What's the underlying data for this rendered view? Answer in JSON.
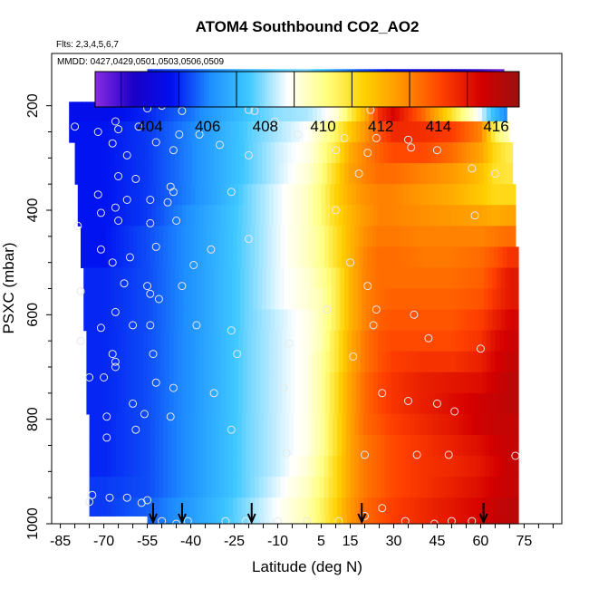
{
  "chart_data": {
    "type": "heatmap",
    "title": "ATOM4 Southbound CO2_AO2",
    "notes": {
      "flights": "Flts: 2,3,4,5,6,7",
      "dates": "MMDD: 0427,0429,0501,0503,0506,0509"
    },
    "xlabel": "Latitude (deg N)",
    "ylabel": "PSXC (mbar)",
    "xlim": [
      -88,
      88
    ],
    "ylim": [
      1000,
      100
    ],
    "x_ticks": [
      "-85",
      "-70",
      "-55",
      "-40",
      "-25",
      "-10",
      "5",
      "15",
      "30",
      "45",
      "60",
      "75"
    ],
    "x_tick_values": [
      -85,
      -70,
      -55,
      -40,
      -25,
      -10,
      5,
      15,
      30,
      45,
      60,
      75
    ],
    "y_ticks": [
      "200",
      "400",
      "600",
      "800",
      "1000"
    ],
    "y_tick_values": [
      200,
      400,
      600,
      800,
      1000
    ],
    "colorbar": {
      "ticks": [
        "404",
        "406",
        "408",
        "410",
        "412",
        "414",
        "416"
      ],
      "tick_values": [
        404,
        406,
        408,
        410,
        412,
        414,
        416
      ],
      "range": [
        402.1,
        416.8
      ],
      "colors": [
        "#8a2be2",
        "#1a00c8",
        "#0010f0",
        "#1e90ff",
        "#40c8ff",
        "#ffffff",
        "#ffff80",
        "#ffd000",
        "#ff9000",
        "#ff4000",
        "#d40000",
        "#9a1010"
      ]
    },
    "legend_position": "top (horizontal colorbar)",
    "grid": false,
    "pressure_levels": [
      175,
      210,
      250,
      290,
      330,
      370,
      410,
      450,
      490,
      530,
      570,
      610,
      650,
      690,
      730,
      770,
      810,
      850,
      890,
      930,
      970,
      1000
    ],
    "row_lat_start": [
      -55,
      -82,
      -82,
      -80,
      -80,
      -79,
      -79,
      -78,
      -78,
      -77,
      -77,
      -77,
      -76,
      -76,
      -76,
      -76,
      -75,
      -75,
      -75,
      -75,
      -75,
      -55
    ],
    "row_lat_end": [
      68,
      69,
      70,
      71,
      71,
      72,
      72,
      72,
      73,
      73,
      73,
      73,
      73,
      73,
      73,
      73,
      73,
      73,
      73,
      73,
      73,
      73
    ],
    "field_lat": [
      -85,
      -70,
      -55,
      -40,
      -30,
      -20,
      -10,
      0,
      5,
      10,
      15,
      20,
      25,
      30,
      40,
      50,
      60,
      65,
      70,
      75
    ],
    "field": [
      [
        404.6,
        404.6,
        405.0,
        405.6,
        406.2,
        407.0,
        407.6,
        407.8,
        407.2,
        406.4,
        405.8,
        405.4,
        405.0,
        404.6,
        404.0,
        403.6,
        403.0,
        402.5,
        402.2,
        402.2
      ],
      [
        404.6,
        404.6,
        405.0,
        405.8,
        406.6,
        407.4,
        408.0,
        408.2,
        408.6,
        409.2,
        410.6,
        412.0,
        414.5,
        415.4,
        413.5,
        411.0,
        408.6,
        407.0,
        405.8,
        405.8
      ],
      [
        404.8,
        404.8,
        405.2,
        406.0,
        406.8,
        407.6,
        408.2,
        408.8,
        409.6,
        410.4,
        411.6,
        412.6,
        413.8,
        414.6,
        414.5,
        414.2,
        413.0,
        410.5,
        409.4,
        409.4
      ],
      [
        404.8,
        404.8,
        405.2,
        406.0,
        406.8,
        407.6,
        408.4,
        409.0,
        409.8,
        410.8,
        412.2,
        413.0,
        413.6,
        414.0,
        414.0,
        413.4,
        412.4,
        411.2,
        410.6,
        410.6
      ],
      [
        404.8,
        404.8,
        405.2,
        406.0,
        406.8,
        407.6,
        408.4,
        409.2,
        410.0,
        411.2,
        412.4,
        413.0,
        413.4,
        413.4,
        413.0,
        412.6,
        411.8,
        411.0,
        410.8,
        410.8
      ],
      [
        404.8,
        404.8,
        405.2,
        406.0,
        406.8,
        407.8,
        408.6,
        409.4,
        410.2,
        411.4,
        412.2,
        412.8,
        413.0,
        413.0,
        412.6,
        412.2,
        411.6,
        411.2,
        411.2,
        411.2
      ],
      [
        404.8,
        404.8,
        405.2,
        406.2,
        407.0,
        407.8,
        408.6,
        409.4,
        410.2,
        411.2,
        412.0,
        412.6,
        413.0,
        413.0,
        412.8,
        412.6,
        412.4,
        412.2,
        412.4,
        412.4
      ],
      [
        404.8,
        404.8,
        405.4,
        406.2,
        407.0,
        407.8,
        408.6,
        409.4,
        410.0,
        411.0,
        412.0,
        412.8,
        413.2,
        413.2,
        413.0,
        413.0,
        413.0,
        413.2,
        413.4,
        413.4
      ],
      [
        404.8,
        404.8,
        405.4,
        406.2,
        407.0,
        407.8,
        408.6,
        409.4,
        410.0,
        411.0,
        412.0,
        413.0,
        413.4,
        413.4,
        413.2,
        413.2,
        413.4,
        413.8,
        414.4,
        414.4
      ],
      [
        405.0,
        405.0,
        405.4,
        406.2,
        407.0,
        407.8,
        408.6,
        409.2,
        409.8,
        410.6,
        412.0,
        413.0,
        413.4,
        413.4,
        413.4,
        413.4,
        413.6,
        414.2,
        415.0,
        415.0
      ],
      [
        405.0,
        405.0,
        405.4,
        406.2,
        407.0,
        407.8,
        408.6,
        409.2,
        409.6,
        410.6,
        412.0,
        413.0,
        413.4,
        413.6,
        413.6,
        413.6,
        413.8,
        414.4,
        415.0,
        415.0
      ],
      [
        405.0,
        405.0,
        405.4,
        406.2,
        407.0,
        407.8,
        408.4,
        409.0,
        409.6,
        410.6,
        412.0,
        413.0,
        413.6,
        413.8,
        413.8,
        413.8,
        414.2,
        414.8,
        415.4,
        415.4
      ],
      [
        405.0,
        405.0,
        405.4,
        406.2,
        407.0,
        407.8,
        408.4,
        409.0,
        409.6,
        410.8,
        412.2,
        413.2,
        413.8,
        414.0,
        414.0,
        414.0,
        414.4,
        415.2,
        415.6,
        415.6
      ],
      [
        405.0,
        405.0,
        405.4,
        406.2,
        407.0,
        407.8,
        408.4,
        409.0,
        409.8,
        410.8,
        412.2,
        413.2,
        413.8,
        414.2,
        414.4,
        414.4,
        414.8,
        415.4,
        415.8,
        415.8
      ],
      [
        405.0,
        405.0,
        405.4,
        406.2,
        407.0,
        407.8,
        408.4,
        409.0,
        409.8,
        411.0,
        412.4,
        413.4,
        414.0,
        414.4,
        414.8,
        415.0,
        415.2,
        415.6,
        416.0,
        416.0
      ],
      [
        405.0,
        405.0,
        405.4,
        406.2,
        407.0,
        407.8,
        408.4,
        409.0,
        409.8,
        411.0,
        412.4,
        413.4,
        414.0,
        414.4,
        414.8,
        415.2,
        415.6,
        415.8,
        416.0,
        416.0
      ],
      [
        405.0,
        405.0,
        405.4,
        406.2,
        407.0,
        407.8,
        408.4,
        409.0,
        409.8,
        411.0,
        412.4,
        413.4,
        413.8,
        414.2,
        414.6,
        415.0,
        415.6,
        415.8,
        415.8,
        415.8
      ],
      [
        405.0,
        405.0,
        405.4,
        406.2,
        407.0,
        407.8,
        408.4,
        409.0,
        409.8,
        411.0,
        412.4,
        413.2,
        413.6,
        414.0,
        414.4,
        414.8,
        415.2,
        415.6,
        415.8,
        415.8
      ],
      [
        405.0,
        405.0,
        405.4,
        406.2,
        407.0,
        407.8,
        408.4,
        409.2,
        410.0,
        411.2,
        412.4,
        413.2,
        413.6,
        414.0,
        414.4,
        414.6,
        415.0,
        415.4,
        415.8,
        415.8
      ],
      [
        405.2,
        405.2,
        405.4,
        406.2,
        407.0,
        407.8,
        408.6,
        409.4,
        410.2,
        411.2,
        412.4,
        413.2,
        413.6,
        414.0,
        414.4,
        414.8,
        415.2,
        415.6,
        415.8,
        415.8
      ],
      [
        405.2,
        405.2,
        405.6,
        406.4,
        407.2,
        408.0,
        408.8,
        409.6,
        410.4,
        411.4,
        412.6,
        413.4,
        413.8,
        414.2,
        414.6,
        415.0,
        415.4,
        415.8,
        416.0,
        416.0
      ],
      [
        405.2,
        405.2,
        405.6,
        406.4,
        407.2,
        408.0,
        408.8,
        409.6,
        410.4,
        411.4,
        412.6,
        413.4,
        413.8,
        414.2,
        414.6,
        415.0,
        415.4,
        415.8,
        416.0,
        416.0
      ]
    ],
    "samples": [
      {
        "x": -55,
        "y": 205
      },
      {
        "x": -50,
        "y": 200
      },
      {
        "x": -43,
        "y": 210
      },
      {
        "x": -20,
        "y": 208
      },
      {
        "x": -18,
        "y": 210
      },
      {
        "x": -11,
        "y": 230
      },
      {
        "x": 22,
        "y": 208
      },
      {
        "x": -80,
        "y": 240
      },
      {
        "x": -72,
        "y": 250
      },
      {
        "x": -66,
        "y": 230
      },
      {
        "x": -65,
        "y": 245
      },
      {
        "x": -58,
        "y": 240
      },
      {
        "x": -44,
        "y": 255
      },
      {
        "x": -37,
        "y": 255
      },
      {
        "x": -3,
        "y": 255
      },
      {
        "x": 13,
        "y": 262
      },
      {
        "x": 24,
        "y": 262
      },
      {
        "x": 35,
        "y": 265
      },
      {
        "x": -67,
        "y": 272
      },
      {
        "x": -52,
        "y": 270
      },
      {
        "x": -46,
        "y": 285
      },
      {
        "x": -30,
        "y": 275
      },
      {
        "x": -20,
        "y": 295
      },
      {
        "x": -62,
        "y": 295
      },
      {
        "x": 10,
        "y": 285
      },
      {
        "x": 21,
        "y": 290
      },
      {
        "x": 36,
        "y": 280
      },
      {
        "x": 45,
        "y": 285
      },
      {
        "x": 57,
        "y": 320
      },
      {
        "x": 65,
        "y": 330
      },
      {
        "x": -65,
        "y": 335
      },
      {
        "x": -59,
        "y": 340
      },
      {
        "x": -47,
        "y": 355
      },
      {
        "x": 18,
        "y": 330
      },
      {
        "x": -72,
        "y": 370
      },
      {
        "x": -54,
        "y": 380
      },
      {
        "x": -46,
        "y": 365
      },
      {
        "x": -26,
        "y": 365
      },
      {
        "x": -71,
        "y": 405
      },
      {
        "x": -66,
        "y": 395
      },
      {
        "x": -62,
        "y": 380
      },
      {
        "x": -48,
        "y": 385
      },
      {
        "x": 10,
        "y": 400
      },
      {
        "x": 58,
        "y": 410
      },
      {
        "x": -79,
        "y": 430
      },
      {
        "x": -65,
        "y": 420
      },
      {
        "x": -54,
        "y": 425
      },
      {
        "x": -45,
        "y": 420
      },
      {
        "x": -20,
        "y": 455
      },
      {
        "x": -71,
        "y": 475
      },
      {
        "x": -52,
        "y": 470
      },
      {
        "x": -33,
        "y": 475
      },
      {
        "x": -67,
        "y": 500
      },
      {
        "x": -61,
        "y": 490
      },
      {
        "x": -39,
        "y": 505
      },
      {
        "x": 15,
        "y": 500
      },
      {
        "x": -78,
        "y": 555
      },
      {
        "x": -63,
        "y": 540
      },
      {
        "x": -55,
        "y": 545
      },
      {
        "x": -43,
        "y": 545
      },
      {
        "x": 21,
        "y": 545
      },
      {
        "x": -66,
        "y": 595
      },
      {
        "x": -54,
        "y": 560
      },
      {
        "x": -51,
        "y": 570
      },
      {
        "x": 7,
        "y": 590
      },
      {
        "x": 24,
        "y": 590
      },
      {
        "x": 37,
        "y": 600
      },
      {
        "x": -71,
        "y": 625
      },
      {
        "x": -60,
        "y": 620
      },
      {
        "x": -54,
        "y": 620
      },
      {
        "x": -38,
        "y": 620
      },
      {
        "x": -26,
        "y": 630
      },
      {
        "x": 23,
        "y": 620
      },
      {
        "x": -67,
        "y": 675
      },
      {
        "x": -78,
        "y": 650
      },
      {
        "x": -66,
        "y": 690
      },
      {
        "x": -53,
        "y": 675
      },
      {
        "x": -24,
        "y": 675
      },
      {
        "x": -6,
        "y": 655
      },
      {
        "x": 16,
        "y": 680
      },
      {
        "x": 42,
        "y": 645
      },
      {
        "x": 60,
        "y": 665
      },
      {
        "x": -75,
        "y": 720
      },
      {
        "x": -70,
        "y": 720
      },
      {
        "x": -66,
        "y": 700
      },
      {
        "x": -52,
        "y": 730
      },
      {
        "x": -46,
        "y": 740
      },
      {
        "x": -32,
        "y": 750
      },
      {
        "x": -60,
        "y": 770
      },
      {
        "x": -8,
        "y": 740
      },
      {
        "x": 26,
        "y": 750
      },
      {
        "x": 35,
        "y": 765
      },
      {
        "x": 45,
        "y": 770
      },
      {
        "x": -69,
        "y": 795
      },
      {
        "x": -56,
        "y": 790
      },
      {
        "x": -47,
        "y": 795
      },
      {
        "x": -59,
        "y": 820
      },
      {
        "x": -69,
        "y": 835
      },
      {
        "x": -26,
        "y": 820
      },
      {
        "x": 51,
        "y": 785
      },
      {
        "x": -7,
        "y": 865
      },
      {
        "x": 20,
        "y": 868
      },
      {
        "x": 38,
        "y": 868
      },
      {
        "x": 49,
        "y": 868
      },
      {
        "x": 72,
        "y": 870
      },
      {
        "x": -74,
        "y": 945
      },
      {
        "x": -68,
        "y": 950
      },
      {
        "x": -62,
        "y": 950
      },
      {
        "x": -57,
        "y": 960
      },
      {
        "x": -75,
        "y": 958
      },
      {
        "x": -55,
        "y": 955
      },
      {
        "x": -50,
        "y": 995
      },
      {
        "x": -45,
        "y": 1000
      },
      {
        "x": -41,
        "y": 995
      },
      {
        "x": -28,
        "y": 995
      },
      {
        "x": -21,
        "y": 995
      },
      {
        "x": -10,
        "y": 995
      },
      {
        "x": 0,
        "y": 995
      },
      {
        "x": 11,
        "y": 995
      },
      {
        "x": 20,
        "y": 985
      },
      {
        "x": 26,
        "y": 970
      },
      {
        "x": 34,
        "y": 995
      },
      {
        "x": 44,
        "y": 1000
      },
      {
        "x": 50,
        "y": 995
      },
      {
        "x": 57,
        "y": 995
      }
    ],
    "marker_lats": [
      -53,
      -43,
      -19,
      19,
      61
    ]
  }
}
